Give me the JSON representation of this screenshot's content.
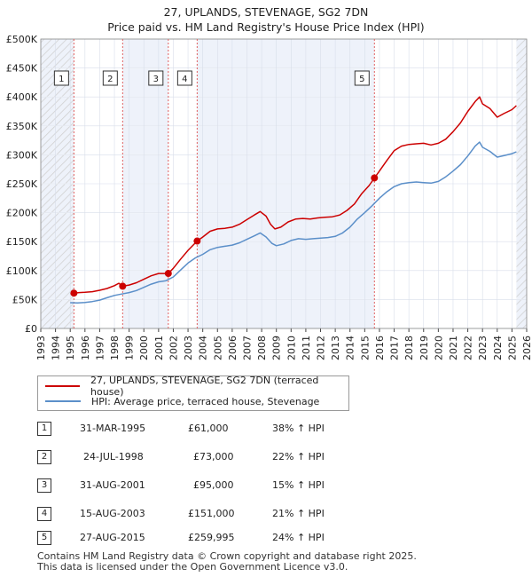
{
  "chart_data": {
    "type": "line",
    "title": "27, UPLANDS, STEVENAGE, SG2 7DN",
    "subtitle": "Price paid vs. HM Land Registry's House Price Index (HPI)",
    "xlim": [
      1993,
      2026
    ],
    "ylim": [
      0,
      500000
    ],
    "x_ticks": [
      "1993",
      "1994",
      "1995",
      "1996",
      "1997",
      "1998",
      "1999",
      "2000",
      "2001",
      "2002",
      "2003",
      "2004",
      "2005",
      "2006",
      "2007",
      "2008",
      "2009",
      "2010",
      "2011",
      "2012",
      "2013",
      "2014",
      "2015",
      "2016",
      "2017",
      "2018",
      "2019",
      "2020",
      "2021",
      "2022",
      "2023",
      "2024",
      "2025",
      "2026"
    ],
    "y_ticks": [
      {
        "value": 0,
        "label": "£0"
      },
      {
        "value": 50000,
        "label": "£50K"
      },
      {
        "value": 100000,
        "label": "£100K"
      },
      {
        "value": 150000,
        "label": "£150K"
      },
      {
        "value": 200000,
        "label": "£200K"
      },
      {
        "value": 250000,
        "label": "£250K"
      },
      {
        "value": 300000,
        "label": "£300K"
      },
      {
        "value": 350000,
        "label": "£350K"
      },
      {
        "value": 400000,
        "label": "£400K"
      },
      {
        "value": 450000,
        "label": "£450K"
      },
      {
        "value": 500000,
        "label": "£500K"
      }
    ],
    "hatched_before": 1995.25,
    "hatched_after": 2025.3,
    "series": [
      {
        "name": "27, UPLANDS, STEVENAGE, SG2 7DN (terraced house)",
        "color": "#cc0000",
        "points": [
          [
            1995.25,
            61000
          ],
          [
            1995.6,
            62000
          ],
          [
            1996.0,
            62500
          ],
          [
            1996.5,
            63500
          ],
          [
            1997.0,
            66000
          ],
          [
            1997.5,
            69000
          ],
          [
            1998.0,
            74000
          ],
          [
            1998.3,
            78000
          ],
          [
            1998.56,
            73000
          ],
          [
            1999.0,
            75000
          ],
          [
            1999.5,
            79000
          ],
          [
            2000.0,
            85000
          ],
          [
            2000.5,
            91000
          ],
          [
            2001.0,
            95000
          ],
          [
            2001.66,
            95000
          ],
          [
            2002.0,
            104000
          ],
          [
            2002.5,
            120000
          ],
          [
            2003.0,
            135000
          ],
          [
            2003.62,
            151000
          ],
          [
            2004.0,
            158000
          ],
          [
            2004.5,
            168000
          ],
          [
            2005.0,
            172000
          ],
          [
            2005.5,
            173000
          ],
          [
            2006.0,
            175000
          ],
          [
            2006.5,
            180000
          ],
          [
            2007.0,
            188000
          ],
          [
            2007.5,
            196000
          ],
          [
            2007.9,
            202000
          ],
          [
            2008.3,
            194000
          ],
          [
            2008.6,
            180000
          ],
          [
            2008.9,
            172000
          ],
          [
            2009.3,
            175000
          ],
          [
            2009.8,
            184000
          ],
          [
            2010.3,
            189000
          ],
          [
            2010.8,
            190000
          ],
          [
            2011.3,
            189000
          ],
          [
            2011.8,
            191000
          ],
          [
            2012.3,
            192000
          ],
          [
            2012.8,
            193000
          ],
          [
            2013.3,
            196000
          ],
          [
            2013.8,
            204000
          ],
          [
            2014.3,
            215000
          ],
          [
            2014.8,
            233000
          ],
          [
            2015.3,
            247000
          ],
          [
            2015.66,
            259995
          ],
          [
            2016.0,
            272000
          ],
          [
            2016.5,
            290000
          ],
          [
            2017.0,
            307000
          ],
          [
            2017.5,
            315000
          ],
          [
            2018.0,
            318000
          ],
          [
            2018.5,
            319000
          ],
          [
            2019.0,
            320000
          ],
          [
            2019.5,
            317000
          ],
          [
            2020.0,
            320000
          ],
          [
            2020.5,
            327000
          ],
          [
            2021.0,
            340000
          ],
          [
            2021.5,
            355000
          ],
          [
            2022.0,
            375000
          ],
          [
            2022.5,
            392000
          ],
          [
            2022.8,
            400000
          ],
          [
            2023.0,
            388000
          ],
          [
            2023.5,
            380000
          ],
          [
            2024.0,
            365000
          ],
          [
            2024.5,
            372000
          ],
          [
            2025.0,
            378000
          ],
          [
            2025.3,
            385000
          ]
        ]
      },
      {
        "name": "HPI: Average price, terraced house, Stevenage",
        "color": "#5b8fc9",
        "points": [
          [
            1995.0,
            44500
          ],
          [
            1995.5,
            44000
          ],
          [
            1996.0,
            45000
          ],
          [
            1996.5,
            46500
          ],
          [
            1997.0,
            49000
          ],
          [
            1997.5,
            53000
          ],
          [
            1998.0,
            57000
          ],
          [
            1998.5,
            59500
          ],
          [
            1999.0,
            62000
          ],
          [
            1999.5,
            65500
          ],
          [
            2000.0,
            71000
          ],
          [
            2000.5,
            76500
          ],
          [
            2001.0,
            80500
          ],
          [
            2001.5,
            82500
          ],
          [
            2002.0,
            89000
          ],
          [
            2002.5,
            101000
          ],
          [
            2003.0,
            113000
          ],
          [
            2003.5,
            122000
          ],
          [
            2004.0,
            128000
          ],
          [
            2004.5,
            136000
          ],
          [
            2005.0,
            140000
          ],
          [
            2005.5,
            142000
          ],
          [
            2006.0,
            144000
          ],
          [
            2006.5,
            148000
          ],
          [
            2007.0,
            154000
          ],
          [
            2007.5,
            160000
          ],
          [
            2007.9,
            165000
          ],
          [
            2008.3,
            158000
          ],
          [
            2008.7,
            147000
          ],
          [
            2009.0,
            143000
          ],
          [
            2009.5,
            146000
          ],
          [
            2010.0,
            152000
          ],
          [
            2010.5,
            155000
          ],
          [
            2011.0,
            154000
          ],
          [
            2011.5,
            155000
          ],
          [
            2012.0,
            156000
          ],
          [
            2012.5,
            157000
          ],
          [
            2013.0,
            159000
          ],
          [
            2013.5,
            165000
          ],
          [
            2014.0,
            175000
          ],
          [
            2014.5,
            189000
          ],
          [
            2015.0,
            200000
          ],
          [
            2015.5,
            212000
          ],
          [
            2016.0,
            225000
          ],
          [
            2016.5,
            236000
          ],
          [
            2017.0,
            245000
          ],
          [
            2017.5,
            250000
          ],
          [
            2018.0,
            252000
          ],
          [
            2018.5,
            253000
          ],
          [
            2019.0,
            252000
          ],
          [
            2019.5,
            251000
          ],
          [
            2020.0,
            254000
          ],
          [
            2020.5,
            262000
          ],
          [
            2021.0,
            272000
          ],
          [
            2021.5,
            283000
          ],
          [
            2022.0,
            298000
          ],
          [
            2022.5,
            315000
          ],
          [
            2022.8,
            322000
          ],
          [
            2023.0,
            313000
          ],
          [
            2023.5,
            306000
          ],
          [
            2024.0,
            296000
          ],
          [
            2024.5,
            299000
          ],
          [
            2025.0,
            302000
          ],
          [
            2025.3,
            305000
          ]
        ]
      }
    ],
    "sales": [
      {
        "num": "1",
        "x": 1995.25,
        "price": 61000
      },
      {
        "num": "2",
        "x": 1998.56,
        "price": 73000
      },
      {
        "num": "3",
        "x": 2001.66,
        "price": 95000
      },
      {
        "num": "4",
        "x": 2003.62,
        "price": 151000
      },
      {
        "num": "5",
        "x": 2015.66,
        "price": 259995
      }
    ]
  },
  "legend": {
    "property_label": "27, UPLANDS, STEVENAGE, SG2 7DN (terraced house)",
    "hpi_label": "HPI: Average price, terraced house, Stevenage"
  },
  "transactions": [
    {
      "num": "1",
      "date": "31-MAR-1995",
      "price": "£61,000",
      "hpi": "38% ↑ HPI"
    },
    {
      "num": "2",
      "date": "24-JUL-1998",
      "price": "£73,000",
      "hpi": "22% ↑ HPI"
    },
    {
      "num": "3",
      "date": "31-AUG-2001",
      "price": "£95,000",
      "hpi": "15% ↑ HPI"
    },
    {
      "num": "4",
      "date": "15-AUG-2003",
      "price": "£151,000",
      "hpi": "21% ↑ HPI"
    },
    {
      "num": "5",
      "date": "27-AUG-2015",
      "price": "£259,995",
      "hpi": "24% ↑ HPI"
    }
  ],
  "footer": {
    "line1": "Contains HM Land Registry data © Crown copyright and database right 2025.",
    "line2": "This data is licensed under the Open Government Licence v3.0."
  }
}
